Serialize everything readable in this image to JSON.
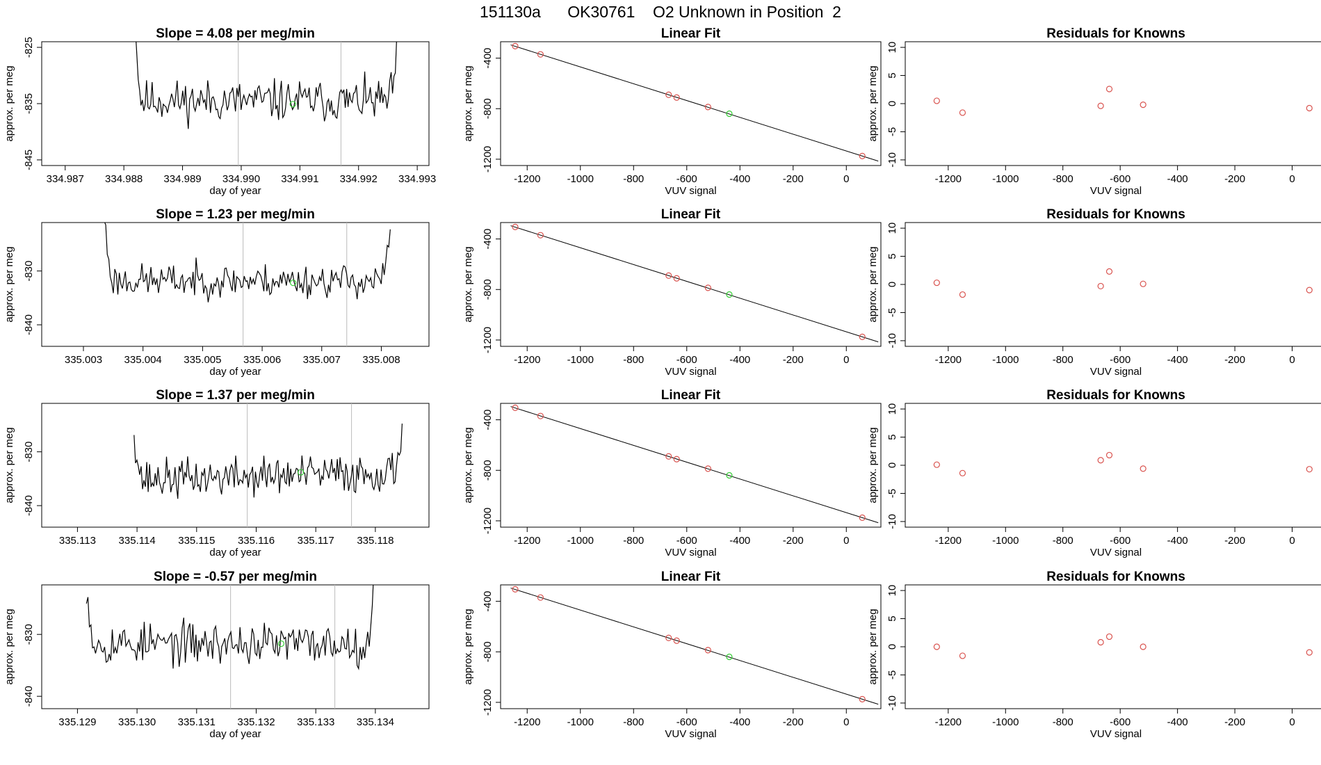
{
  "header": {
    "title": "151130a      OK30761    O2 Unknown in Position  2"
  },
  "colors": {
    "known_point": "#d9534f",
    "unknown_point": "#33cc33",
    "vline": "#bbbbbb",
    "line": "#000000"
  },
  "chart_data": [
    {
      "type": "line",
      "panel": "trace",
      "row": 0,
      "title": "Slope =  4.08  per meg/min",
      "xlabel": "day of year",
      "ylabel": "approx. per meg",
      "xlim": [
        334.9866,
        334.9932
      ],
      "ylim": [
        -846,
        -824
      ],
      "xticks": [
        334.987,
        334.988,
        334.989,
        334.99,
        334.991,
        334.992,
        334.993
      ],
      "xtick_labels": [
        "334.987",
        "334.988",
        "334.989",
        "334.990",
        "334.991",
        "334.992",
        "334.993"
      ],
      "yticks": [
        -825,
        -835,
        -845
      ],
      "ytick_labels": [
        "-825",
        "-835",
        "-845"
      ],
      "x_start": 334.98815,
      "x_end": 334.99265,
      "base": -834.5,
      "amp": 2.6,
      "trend": 0.0,
      "drop": -30,
      "rise": -8,
      "vlines": [
        334.98995,
        334.9917
      ],
      "unknown_point": [
        334.99088,
        -835.1
      ],
      "seed": 11
    },
    {
      "type": "scatter",
      "panel": "linear_fit",
      "row": 0,
      "title": "Linear Fit",
      "xlabel": "VUV signal",
      "ylabel": "approx. per meg",
      "xlim": [
        -1300,
        130
      ],
      "ylim": [
        -1250,
        -270
      ],
      "xticks": [
        -1200,
        -1000,
        -800,
        -600,
        -400,
        -200,
        0
      ],
      "xtick_labels": [
        "-1200",
        "-1000",
        "-800",
        "-600",
        "-400",
        "-200",
        "0"
      ],
      "yticks": [
        -400,
        -800,
        -1200
      ],
      "ytick_labels": [
        "-400",
        "-800",
        "-1200"
      ],
      "fit_line": [
        [
          -1262,
          -295
        ],
        [
          120,
          -1215
        ]
      ],
      "known_points": [
        [
          -1245,
          -305
        ],
        [
          -1150,
          -370
        ],
        [
          -668,
          -690
        ],
        [
          -638,
          -712
        ],
        [
          -520,
          -787
        ],
        [
          60,
          -1175
        ]
      ],
      "unknown_point": [
        -440,
        -840
      ]
    },
    {
      "type": "scatter",
      "panel": "residuals",
      "row": 0,
      "title": "Residuals for Knowns",
      "xlabel": "VUV signal",
      "ylabel": "approx. per meg",
      "xlim": [
        -1350,
        120
      ],
      "ylim": [
        -11,
        11
      ],
      "xticks": [
        -1200,
        -1000,
        -800,
        -600,
        -400,
        -200,
        0
      ],
      "xtick_labels": [
        "-1200",
        "-1000",
        "-800",
        "-600",
        "-400",
        "-200",
        "0"
      ],
      "yticks": [
        10,
        5,
        0,
        -5,
        -10
      ],
      "ytick_labels": [
        "10",
        "5",
        "0",
        "-5",
        "-10"
      ],
      "points": [
        [
          -1240,
          0.5
        ],
        [
          -1150,
          -1.6
        ],
        [
          -668,
          -0.4
        ],
        [
          -638,
          2.6
        ],
        [
          -520,
          -0.2
        ],
        [
          60,
          -0.8
        ]
      ]
    },
    {
      "type": "line",
      "panel": "trace",
      "row": 1,
      "title": "Slope =  1.23  per meg/min",
      "xlabel": "day of year",
      "ylabel": "approx. per meg",
      "xlim": [
        335.0023,
        335.0088
      ],
      "ylim": [
        -844,
        -821
      ],
      "xticks": [
        335.003,
        335.004,
        335.005,
        335.006,
        335.007,
        335.008
      ],
      "xtick_labels": [
        "335.003",
        "335.004",
        "335.005",
        "335.006",
        "335.007",
        "335.008"
      ],
      "yticks": [
        -830,
        -840
      ],
      "ytick_labels": [
        "-830",
        "-840"
      ],
      "x_start": 335.00335,
      "x_end": 335.00815,
      "base": -831.8,
      "amp": 2.2,
      "trend": 0.0,
      "drop": -12,
      "rise": -10,
      "vlines": [
        335.00568,
        335.00742
      ],
      "unknown_point": [
        335.00652,
        -832.2
      ],
      "seed": 23
    },
    {
      "type": "scatter",
      "panel": "linear_fit",
      "row": 1,
      "title": "Linear Fit",
      "xlabel": "VUV signal",
      "ylabel": "approx. per meg",
      "xlim": [
        -1300,
        130
      ],
      "ylim": [
        -1250,
        -270
      ],
      "xticks": [
        -1200,
        -1000,
        -800,
        -600,
        -400,
        -200,
        0
      ],
      "xtick_labels": [
        "-1200",
        "-1000",
        "-800",
        "-600",
        "-400",
        "-200",
        "0"
      ],
      "yticks": [
        -400,
        -800,
        -1200
      ],
      "ytick_labels": [
        "-400",
        "-800",
        "-1200"
      ],
      "fit_line": [
        [
          -1262,
          -295
        ],
        [
          120,
          -1215
        ]
      ],
      "known_points": [
        [
          -1245,
          -305
        ],
        [
          -1150,
          -370
        ],
        [
          -668,
          -690
        ],
        [
          -638,
          -712
        ],
        [
          -520,
          -787
        ],
        [
          60,
          -1175
        ]
      ],
      "unknown_point": [
        -440,
        -840
      ]
    },
    {
      "type": "scatter",
      "panel": "residuals",
      "row": 1,
      "title": "Residuals for Knowns",
      "xlabel": "VUV signal",
      "ylabel": "approx. per meg",
      "xlim": [
        -1350,
        120
      ],
      "ylim": [
        -11,
        11
      ],
      "xticks": [
        -1200,
        -1000,
        -800,
        -600,
        -400,
        -200,
        0
      ],
      "xtick_labels": [
        "-1200",
        "-1000",
        "-800",
        "-600",
        "-400",
        "-200",
        "0"
      ],
      "yticks": [
        10,
        5,
        0,
        -5,
        -10
      ],
      "ytick_labels": [
        "10",
        "5",
        "0",
        "-5",
        "-10"
      ],
      "points": [
        [
          -1240,
          0.3
        ],
        [
          -1150,
          -1.8
        ],
        [
          -668,
          -0.3
        ],
        [
          -638,
          2.3
        ],
        [
          -520,
          0.1
        ],
        [
          60,
          -1.0
        ]
      ]
    },
    {
      "type": "line",
      "panel": "trace",
      "row": 2,
      "title": "Slope =  1.37  per meg/min",
      "xlabel": "day of year",
      "ylabel": "approx. per meg",
      "xlim": [
        335.1124,
        335.1189
      ],
      "ylim": [
        -844,
        -821
      ],
      "xticks": [
        335.113,
        335.114,
        335.115,
        335.116,
        335.117,
        335.118
      ],
      "xtick_labels": [
        "335.113",
        "335.114",
        "335.115",
        "335.116",
        "335.117",
        "335.118"
      ],
      "yticks": [
        -830,
        -840
      ],
      "ytick_labels": [
        "-830",
        "-840"
      ],
      "x_start": 335.11395,
      "x_end": 335.11845,
      "base": -834.5,
      "amp": 2.6,
      "trend": 0.7,
      "drop": -10,
      "rise": -10,
      "vlines": [
        335.11585,
        335.1176
      ],
      "unknown_point": [
        335.11675,
        -833.8
      ],
      "seed": 37
    },
    {
      "type": "scatter",
      "panel": "linear_fit",
      "row": 2,
      "title": "Linear Fit",
      "xlabel": "VUV signal",
      "ylabel": "approx. per meg",
      "xlim": [
        -1300,
        130
      ],
      "ylim": [
        -1250,
        -270
      ],
      "xticks": [
        -1200,
        -1000,
        -800,
        -600,
        -400,
        -200,
        0
      ],
      "xtick_labels": [
        "-1200",
        "-1000",
        "-800",
        "-600",
        "-400",
        "-200",
        "0"
      ],
      "yticks": [
        -400,
        -800,
        -1200
      ],
      "ytick_labels": [
        "-400",
        "-800",
        "-1200"
      ],
      "fit_line": [
        [
          -1262,
          -295
        ],
        [
          120,
          -1215
        ]
      ],
      "known_points": [
        [
          -1245,
          -305
        ],
        [
          -1150,
          -370
        ],
        [
          -668,
          -690
        ],
        [
          -638,
          -712
        ],
        [
          -520,
          -787
        ],
        [
          60,
          -1175
        ]
      ],
      "unknown_point": [
        -440,
        -840
      ]
    },
    {
      "type": "scatter",
      "panel": "residuals",
      "row": 2,
      "title": "Residuals for Knowns",
      "xlabel": "VUV signal",
      "ylabel": "approx. per meg",
      "xlim": [
        -1350,
        120
      ],
      "ylim": [
        -11,
        11
      ],
      "xticks": [
        -1200,
        -1000,
        -800,
        -600,
        -400,
        -200,
        0
      ],
      "xtick_labels": [
        "-1200",
        "-1000",
        "-800",
        "-600",
        "-400",
        "-200",
        "0"
      ],
      "points": [
        [
          -1240,
          0.1
        ],
        [
          -1150,
          -1.4
        ],
        [
          -668,
          0.9
        ],
        [
          -638,
          1.8
        ],
        [
          -520,
          -0.6
        ],
        [
          60,
          -0.7
        ]
      ],
      "yticks": [
        10,
        5,
        0,
        -5,
        -10
      ],
      "ytick_labels": [
        "10",
        "5",
        "0",
        "-5",
        "-10"
      ]
    },
    {
      "type": "line",
      "panel": "trace",
      "row": 3,
      "title": "Slope =  -0.57  per meg/min",
      "xlabel": "day of year",
      "ylabel": "approx. per meg",
      "xlim": [
        335.1284,
        335.1349
      ],
      "ylim": [
        -842,
        -822
      ],
      "xticks": [
        335.129,
        335.13,
        335.131,
        335.132,
        335.133,
        335.134
      ],
      "xtick_labels": [
        "335.129",
        "335.130",
        "335.131",
        "335.132",
        "335.133",
        "335.134"
      ],
      "yticks": [
        -830,
        -840
      ],
      "ytick_labels": [
        "-830",
        "-840"
      ],
      "x_start": 335.12915,
      "x_end": 335.134,
      "base": -831.5,
      "amp": 2.4,
      "trend": 0.0,
      "drop": -10,
      "rise": -12,
      "vlines": [
        335.13157,
        335.13332
      ],
      "unknown_point": [
        335.13242,
        -831.5
      ],
      "seed": 53
    },
    {
      "type": "scatter",
      "panel": "linear_fit",
      "row": 3,
      "title": "Linear Fit",
      "xlabel": "VUV signal",
      "ylabel": "approx. per meg",
      "xlim": [
        -1300,
        130
      ],
      "ylim": [
        -1250,
        -270
      ],
      "xticks": [
        -1200,
        -1000,
        -800,
        -600,
        -400,
        -200,
        0
      ],
      "xtick_labels": [
        "-1200",
        "-1000",
        "-800",
        "-600",
        "-400",
        "-200",
        "0"
      ],
      "yticks": [
        -400,
        -800,
        -1200
      ],
      "ytick_labels": [
        "-400",
        "-800",
        "-1200"
      ],
      "fit_line": [
        [
          -1262,
          -295
        ],
        [
          120,
          -1215
        ]
      ],
      "known_points": [
        [
          -1245,
          -305
        ],
        [
          -1150,
          -370
        ],
        [
          -668,
          -690
        ],
        [
          -638,
          -712
        ],
        [
          -520,
          -787
        ],
        [
          60,
          -1175
        ]
      ],
      "unknown_point": [
        -440,
        -840
      ]
    },
    {
      "type": "scatter",
      "panel": "residuals",
      "row": 3,
      "title": "Residuals for Knowns",
      "xlabel": "VUV signal",
      "ylabel": "approx. per meg",
      "xlim": [
        -1350,
        120
      ],
      "ylim": [
        -11,
        11
      ],
      "xticks": [
        -1200,
        -1000,
        -800,
        -600,
        -400,
        -200,
        0
      ],
      "xtick_labels": [
        "-1200",
        "-1000",
        "-800",
        "-600",
        "-400",
        "-200",
        "0"
      ],
      "yticks": [
        10,
        5,
        0,
        -5,
        -10
      ],
      "ytick_labels": [
        "10",
        "5",
        "0",
        "-5",
        "-10"
      ],
      "points": [
        [
          -1240,
          0.0
        ],
        [
          -1150,
          -1.6
        ],
        [
          -668,
          0.8
        ],
        [
          -638,
          1.8
        ],
        [
          -520,
          0.0
        ],
        [
          60,
          -1.0
        ]
      ]
    }
  ]
}
